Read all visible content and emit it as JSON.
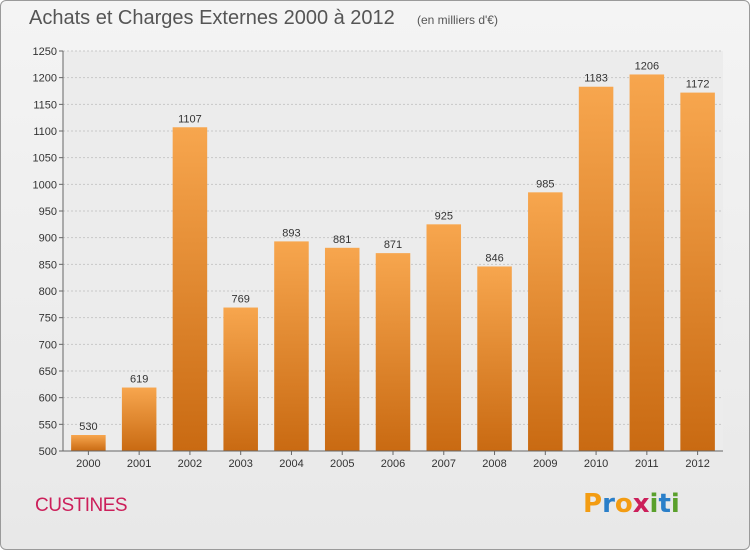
{
  "header": {
    "title": "Achats et Charges Externes 2000 à 2012",
    "subtitle": "(en milliers d'€)"
  },
  "footer": {
    "commune": "CUSTINES",
    "logo": {
      "letters": [
        "P",
        "r",
        "o",
        "x",
        "i",
        "t",
        "i"
      ],
      "colors": [
        "#f39c12",
        "#2a7fc9",
        "#f39c12",
        "#cc1f5a",
        "#5aa02c",
        "#2a7fc9",
        "#5aa02c"
      ]
    }
  },
  "chart_data": {
    "type": "bar",
    "title": "Achats et Charges Externes 2000 à 2012",
    "subtitle": "(en milliers d'€)",
    "categories": [
      "2000",
      "2001",
      "2002",
      "2003",
      "2004",
      "2005",
      "2006",
      "2007",
      "2008",
      "2009",
      "2010",
      "2011",
      "2012"
    ],
    "values": [
      530,
      619,
      1107,
      769,
      893,
      881,
      871,
      925,
      846,
      985,
      1183,
      1206,
      1172
    ],
    "ylim": [
      500,
      1250
    ],
    "yticks": [
      500,
      550,
      600,
      650,
      700,
      750,
      800,
      850,
      900,
      950,
      1000,
      1050,
      1100,
      1150,
      1200,
      1250
    ],
    "grid": true,
    "bar_color_top": "#f7a64e",
    "bar_color_bottom": "#c96a12"
  }
}
